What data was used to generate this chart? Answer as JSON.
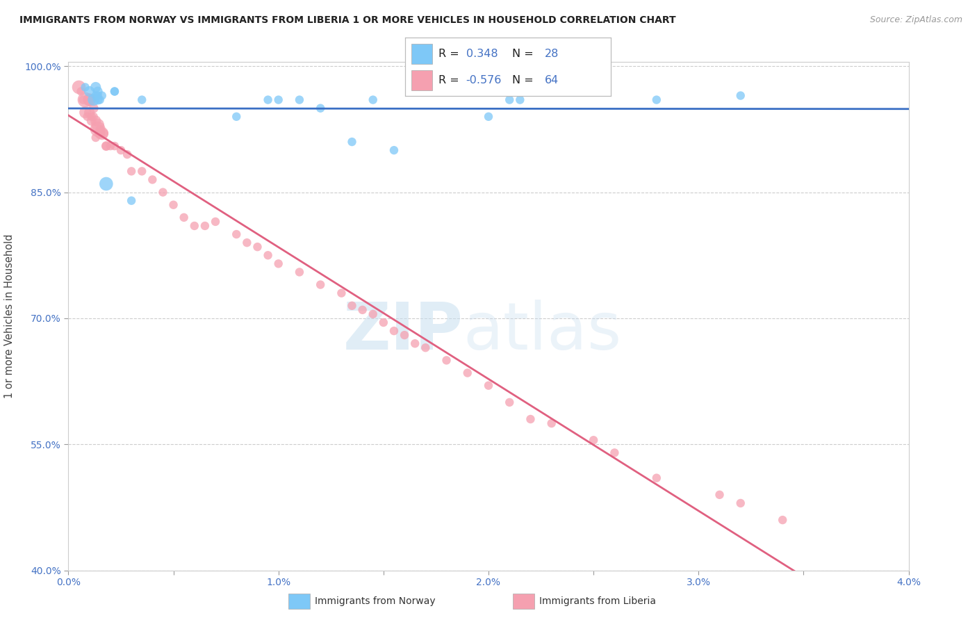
{
  "title": "IMMIGRANTS FROM NORWAY VS IMMIGRANTS FROM LIBERIA 1 OR MORE VEHICLES IN HOUSEHOLD CORRELATION CHART",
  "source": "Source: ZipAtlas.com",
  "ylabel": "1 or more Vehicles in Household",
  "legend_norway": "Immigrants from Norway",
  "legend_liberia": "Immigrants from Liberia",
  "R_norway": 0.348,
  "N_norway": 28,
  "R_liberia": -0.576,
  "N_liberia": 64,
  "xlim": [
    0.0,
    4.0
  ],
  "ylim": [
    0.4,
    1.005
  ],
  "xtick_vals": [
    0.0,
    0.5,
    1.0,
    1.5,
    2.0,
    2.5,
    3.0,
    3.5,
    4.0
  ],
  "xtick_labels": [
    "0.0%",
    "",
    "1.0%",
    "",
    "2.0%",
    "",
    "3.0%",
    "",
    "4.0%"
  ],
  "ytick_vals": [
    0.4,
    0.55,
    0.7,
    0.85,
    1.0
  ],
  "ytick_labels": [
    "40.0%",
    "55.0%",
    "70.0%",
    "85.0%",
    "100.0%"
  ],
  "norway_color": "#7ec8f7",
  "liberia_color": "#f5a0b0",
  "norway_line_color": "#3a6fc4",
  "liberia_line_color": "#e06080",
  "norway_x": [
    0.08,
    0.1,
    0.12,
    0.13,
    0.13,
    0.14,
    0.14,
    0.14,
    0.15,
    0.16,
    0.18,
    0.22,
    0.22,
    0.3,
    0.35,
    0.8,
    0.95,
    1.0,
    1.1,
    1.2,
    1.35,
    1.45,
    1.55,
    2.0,
    2.1,
    2.15,
    2.8,
    3.2
  ],
  "norway_y": [
    0.975,
    0.97,
    0.96,
    0.965,
    0.975,
    0.96,
    0.965,
    0.97,
    0.96,
    0.965,
    0.86,
    0.97,
    0.97,
    0.84,
    0.96,
    0.94,
    0.96,
    0.96,
    0.96,
    0.95,
    0.91,
    0.96,
    0.9,
    0.94,
    0.96,
    0.96,
    0.96,
    0.965
  ],
  "norway_sizes": [
    80,
    120,
    150,
    80,
    120,
    100,
    80,
    100,
    80,
    80,
    200,
    80,
    80,
    80,
    80,
    80,
    80,
    80,
    80,
    80,
    80,
    80,
    80,
    80,
    80,
    80,
    80,
    80
  ],
  "liberia_x": [
    0.05,
    0.06,
    0.07,
    0.08,
    0.08,
    0.09,
    0.1,
    0.1,
    0.1,
    0.11,
    0.11,
    0.12,
    0.12,
    0.13,
    0.13,
    0.14,
    0.14,
    0.15,
    0.15,
    0.16,
    0.17,
    0.18,
    0.18,
    0.2,
    0.22,
    0.25,
    0.28,
    0.3,
    0.35,
    0.4,
    0.45,
    0.5,
    0.55,
    0.6,
    0.65,
    0.7,
    0.8,
    0.85,
    0.9,
    0.95,
    1.0,
    1.1,
    1.2,
    1.3,
    1.35,
    1.4,
    1.45,
    1.5,
    1.55,
    1.6,
    1.65,
    1.7,
    1.8,
    1.9,
    2.0,
    2.1,
    2.2,
    2.3,
    2.5,
    2.6,
    2.8,
    3.1,
    3.2,
    3.4
  ],
  "liberia_y": [
    0.975,
    0.97,
    0.96,
    0.945,
    0.96,
    0.94,
    0.96,
    0.945,
    0.96,
    0.94,
    0.935,
    0.94,
    0.95,
    0.935,
    0.915,
    0.925,
    0.93,
    0.925,
    0.92,
    0.92,
    0.92,
    0.905,
    0.905,
    0.905,
    0.905,
    0.9,
    0.895,
    0.875,
    0.875,
    0.865,
    0.85,
    0.835,
    0.82,
    0.81,
    0.81,
    0.815,
    0.8,
    0.79,
    0.785,
    0.775,
    0.765,
    0.755,
    0.74,
    0.73,
    0.715,
    0.71,
    0.705,
    0.695,
    0.685,
    0.68,
    0.67,
    0.665,
    0.65,
    0.635,
    0.62,
    0.6,
    0.58,
    0.575,
    0.555,
    0.54,
    0.51,
    0.49,
    0.48,
    0.46
  ],
  "liberia_sizes": [
    200,
    80,
    80,
    150,
    250,
    80,
    150,
    120,
    180,
    80,
    100,
    80,
    100,
    120,
    80,
    250,
    180,
    80,
    120,
    180,
    80,
    80,
    100,
    80,
    80,
    80,
    80,
    80,
    80,
    80,
    80,
    80,
    80,
    80,
    80,
    80,
    80,
    80,
    80,
    80,
    80,
    80,
    80,
    80,
    80,
    80,
    80,
    80,
    80,
    80,
    80,
    80,
    80,
    80,
    80,
    80,
    80,
    80,
    80,
    80,
    80,
    80,
    80,
    80
  ],
  "watermark_zip": "ZIP",
  "watermark_atlas": "atlas",
  "background_color": "#ffffff",
  "grid_color": "#cccccc"
}
